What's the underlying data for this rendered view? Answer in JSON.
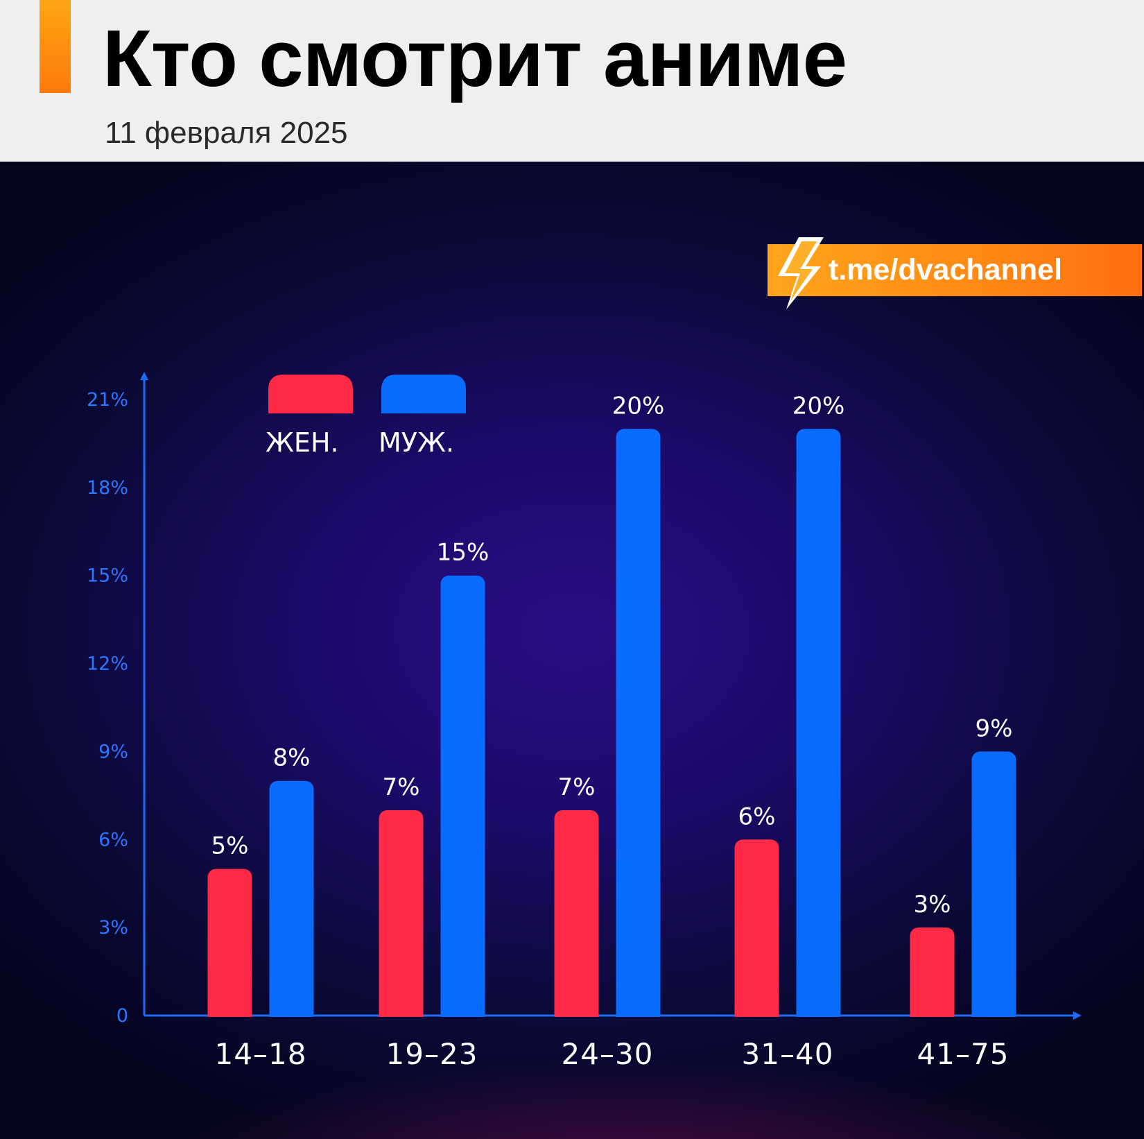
{
  "header": {
    "title": "Кто смотрит аниме",
    "date": "11 февраля 2025"
  },
  "watermark": {
    "text": "t.me/dvachannel",
    "icon": "lightning-bolt-icon"
  },
  "colors": {
    "female": "#ff2a45",
    "male": "#0a6bff",
    "axis": "#1e6cf5",
    "tick_text": "#2f76ff",
    "label_text": "#ffffff",
    "accent": "#ff8c12"
  },
  "chart_data": {
    "type": "bar",
    "categories": [
      "14–18",
      "19–23",
      "24–30",
      "31–40",
      "41–75"
    ],
    "series": [
      {
        "name": "ЖЕН.",
        "values": [
          5,
          7,
          7,
          6,
          3
        ],
        "labels": [
          "5%",
          "7%",
          "7%",
          "6%",
          "3%"
        ]
      },
      {
        "name": "МУЖ.",
        "values": [
          8,
          15,
          20,
          20,
          9
        ],
        "labels": [
          "8%",
          "15%",
          "20%",
          "20%",
          "9%"
        ]
      }
    ],
    "yticks": [
      0,
      3,
      6,
      9,
      12,
      15,
      18,
      21
    ],
    "ytick_labels": [
      "0",
      "3%",
      "6%",
      "9%",
      "12%",
      "15%",
      "18%",
      "21%"
    ],
    "ylim": [
      0,
      21
    ],
    "grid": false,
    "legend_position": "top-left",
    "title": "",
    "xlabel": "",
    "ylabel": ""
  }
}
